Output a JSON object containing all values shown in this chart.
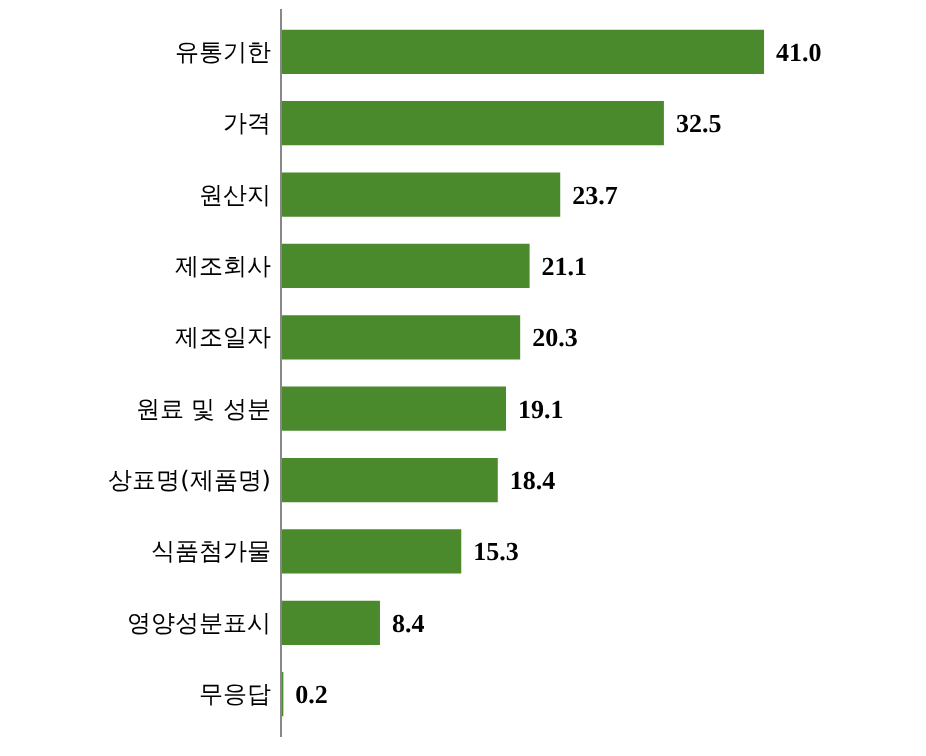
{
  "chart_data": {
    "type": "bar",
    "orientation": "horizontal",
    "categories": [
      "유통기한",
      "가격",
      "원산지",
      "제조회사",
      "제조일자",
      "원료 및 성분",
      "상표명(제품명)",
      "식품첨가물",
      "영양성분표시",
      "무응답"
    ],
    "values": [
      41.0,
      32.5,
      23.7,
      21.1,
      20.3,
      19.1,
      18.4,
      15.3,
      8.4,
      0.2
    ],
    "value_labels": [
      "41.0",
      "32.5",
      "23.7",
      "21.1",
      "20.3",
      "19.1",
      "18.4",
      "15.3",
      "8.4",
      "0.2"
    ],
    "color": "#4a8a2c",
    "grid": false
  }
}
